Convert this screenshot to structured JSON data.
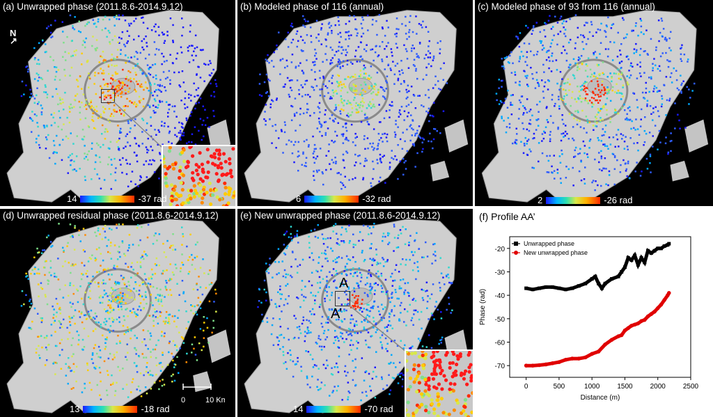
{
  "panels": [
    {
      "id": "a",
      "title": "(a) Unwrapped phase (2011.8.6-2014.9.12)",
      "cmin": "14",
      "cmax": "-37 rad",
      "style": "warm-center"
    },
    {
      "id": "b",
      "title": "(b) Modeled phase of 116 (annual)",
      "cmin": "6",
      "cmax": "-32 rad",
      "style": "blue"
    },
    {
      "id": "c",
      "title": "(c) Modeled phase of 93 from 116 (annual)",
      "cmin": "2",
      "cmax": "-26 rad",
      "style": "ring"
    },
    {
      "id": "d",
      "title": "(d) Unwrapped residual phase (2011.8.6-2014.9.12)",
      "cmin": "13",
      "cmax": "-18 rad",
      "style": "mixed"
    },
    {
      "id": "e",
      "title": "(e) New unwrapped phase (2011.8.6-2014.9.12)",
      "cmin": "14",
      "cmax": "-70 rad",
      "style": "blue-center"
    }
  ],
  "north_label": "N",
  "scale_bar": {
    "zero": "0",
    "ten": "10 Km"
  },
  "profile_labels": {
    "a": "A",
    "a_prime": "A’"
  },
  "chart_title": "(f) Profile AA’",
  "chart_data": {
    "type": "line",
    "title": "(f) Profile AA’",
    "xlabel": "Distance (m)",
    "ylabel": "Phase (rad)",
    "xlim": [
      -250,
      2500
    ],
    "ylim": [
      -75,
      -15
    ],
    "xticks": [
      0,
      500,
      1000,
      1500,
      2000,
      2500
    ],
    "yticks": [
      -20,
      -30,
      -40,
      -50,
      -60,
      -70
    ],
    "legend_position": "top-left",
    "series": [
      {
        "name": "Unwrapped phase",
        "color": "#000000",
        "marker": "square",
        "x": [
          0,
          100,
          200,
          300,
          400,
          500,
          600,
          700,
          800,
          900,
          1000,
          1050,
          1100,
          1150,
          1200,
          1300,
          1400,
          1450,
          1500,
          1550,
          1600,
          1650,
          1700,
          1750,
          1800,
          1850,
          1900,
          1950,
          2000,
          2050,
          2100,
          2150,
          2170
        ],
        "y": [
          -37,
          -37.5,
          -37,
          -36.5,
          -36.5,
          -37,
          -37.5,
          -37,
          -36,
          -35,
          -33,
          -32,
          -35,
          -37,
          -35,
          -33,
          -32,
          -30,
          -28,
          -24,
          -25,
          -23,
          -27,
          -24,
          -26,
          -21,
          -22,
          -21,
          -20,
          -20,
          -19,
          -18.5,
          -18
        ]
      },
      {
        "name": "New unwrapped phase",
        "color": "#e00000",
        "marker": "circle",
        "x": [
          0,
          100,
          200,
          300,
          400,
          500,
          600,
          700,
          800,
          900,
          1000,
          1100,
          1200,
          1300,
          1400,
          1450,
          1500,
          1550,
          1600,
          1650,
          1700,
          1750,
          1800,
          1850,
          1900,
          1950,
          2000,
          2050,
          2100,
          2150,
          2170
        ],
        "y": [
          -70,
          -70,
          -69.8,
          -69.5,
          -69,
          -68.5,
          -67.5,
          -67,
          -67,
          -66.5,
          -65,
          -64,
          -61,
          -59,
          -57.5,
          -57,
          -55,
          -54,
          -53,
          -52.5,
          -52,
          -51,
          -50.5,
          -49,
          -48,
          -47,
          -45.5,
          -44,
          -42,
          -40,
          -39
        ]
      }
    ]
  }
}
